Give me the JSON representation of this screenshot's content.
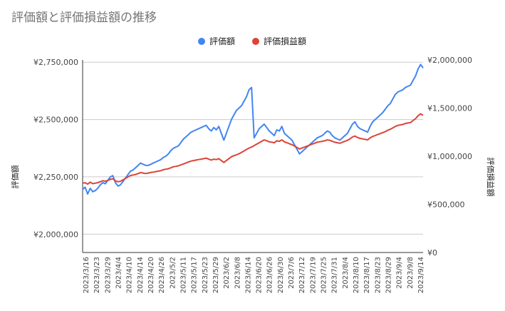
{
  "chart_data": {
    "type": "line",
    "title": "評価額と評価損益額の推移",
    "legend_position": "top",
    "grid": true,
    "x_ticks": [
      "2023/3/16",
      "2023/3/23",
      "2023/3/29",
      "2023/4/4",
      "2023/4/10",
      "2023/4/14",
      "2023/4/20",
      "2023/4/26",
      "2023/5/2",
      "2023/5/11",
      "2023/5/17",
      "2023/5/23",
      "2023/5/29",
      "2023/6/2",
      "2023/6/8",
      "2023/6/14",
      "2023/6/20",
      "2023/6/26",
      "2023/6/30",
      "2023/7/6",
      "2023/7/12",
      "2023/7/19",
      "2023/7/25",
      "2023/7/31",
      "2023/8/4",
      "2023/8/10",
      "2023/8/17",
      "2023/8/23",
      "2023/8/29",
      "2023/9/4",
      "2023/9/8",
      "2023/9/14"
    ],
    "y_left": {
      "label": "評価額",
      "min": 1920000,
      "max": 2760000,
      "ticks": [
        2000000,
        2250000,
        2500000,
        2750000
      ],
      "tick_labels": [
        "¥2,000,000",
        "¥2,250,000",
        "¥2,500,000",
        "¥2,750,000"
      ]
    },
    "y_right": {
      "label": "評価損益額",
      "min": 0,
      "max": 2000000,
      "ticks": [
        0,
        500000,
        1000000,
        1500000,
        2000000
      ],
      "tick_labels": [
        "¥0",
        "¥500,000",
        "¥1,000,000",
        "¥1,500,000",
        "¥2,000,000"
      ]
    },
    "series": [
      {
        "name": "評価額",
        "axis": "left",
        "color": "#4285f4",
        "values": [
          2195000,
          2205000,
          2175000,
          2200000,
          2185000,
          2190000,
          2200000,
          2215000,
          2225000,
          2220000,
          2235000,
          2250000,
          2255000,
          2225000,
          2210000,
          2215000,
          2230000,
          2245000,
          2260000,
          2275000,
          2280000,
          2290000,
          2300000,
          2310000,
          2305000,
          2300000,
          2300000,
          2305000,
          2310000,
          2315000,
          2320000,
          2325000,
          2335000,
          2340000,
          2350000,
          2365000,
          2375000,
          2380000,
          2385000,
          2400000,
          2415000,
          2425000,
          2435000,
          2445000,
          2450000,
          2455000,
          2460000,
          2465000,
          2470000,
          2475000,
          2460000,
          2450000,
          2465000,
          2455000,
          2470000,
          2440000,
          2410000,
          2440000,
          2470000,
          2500000,
          2520000,
          2540000,
          2550000,
          2560000,
          2580000,
          2600000,
          2630000,
          2640000,
          2420000,
          2440000,
          2460000,
          2470000,
          2480000,
          2465000,
          2450000,
          2440000,
          2430000,
          2455000,
          2450000,
          2470000,
          2440000,
          2430000,
          2420000,
          2410000,
          2390000,
          2370000,
          2350000,
          2360000,
          2370000,
          2380000,
          2390000,
          2400000,
          2410000,
          2420000,
          2425000,
          2430000,
          2440000,
          2450000,
          2445000,
          2430000,
          2420000,
          2415000,
          2410000,
          2420000,
          2430000,
          2440000,
          2460000,
          2480000,
          2490000,
          2470000,
          2460000,
          2455000,
          2450000,
          2445000,
          2470000,
          2490000,
          2500000,
          2510000,
          2520000,
          2530000,
          2545000,
          2560000,
          2570000,
          2590000,
          2610000,
          2620000,
          2625000,
          2630000,
          2640000,
          2645000,
          2650000,
          2670000,
          2690000,
          2720000,
          2740000,
          2725000
        ]
      },
      {
        "name": "評価損益額",
        "axis": "right",
        "color": "#db4437",
        "values": [
          720000,
          725000,
          710000,
          730000,
          715000,
          720000,
          725000,
          735000,
          745000,
          740000,
          750000,
          760000,
          765000,
          745000,
          735000,
          740000,
          755000,
          770000,
          785000,
          800000,
          805000,
          810000,
          820000,
          830000,
          825000,
          820000,
          825000,
          830000,
          835000,
          840000,
          845000,
          850000,
          860000,
          865000,
          870000,
          880000,
          890000,
          895000,
          900000,
          910000,
          920000,
          930000,
          940000,
          950000,
          955000,
          960000,
          965000,
          970000,
          975000,
          980000,
          970000,
          960000,
          970000,
          965000,
          975000,
          955000,
          935000,
          955000,
          975000,
          995000,
          1005000,
          1015000,
          1025000,
          1040000,
          1055000,
          1070000,
          1085000,
          1095000,
          1110000,
          1125000,
          1140000,
          1155000,
          1170000,
          1160000,
          1150000,
          1145000,
          1140000,
          1160000,
          1155000,
          1170000,
          1150000,
          1140000,
          1130000,
          1120000,
          1105000,
          1090000,
          1075000,
          1085000,
          1095000,
          1105000,
          1115000,
          1125000,
          1135000,
          1145000,
          1150000,
          1155000,
          1160000,
          1170000,
          1165000,
          1155000,
          1145000,
          1140000,
          1135000,
          1145000,
          1155000,
          1165000,
          1180000,
          1200000,
          1210000,
          1195000,
          1185000,
          1180000,
          1175000,
          1170000,
          1190000,
          1205000,
          1215000,
          1225000,
          1235000,
          1245000,
          1255000,
          1270000,
          1280000,
          1295000,
          1310000,
          1320000,
          1325000,
          1330000,
          1340000,
          1345000,
          1350000,
          1370000,
          1390000,
          1420000,
          1440000,
          1425000
        ]
      }
    ]
  }
}
